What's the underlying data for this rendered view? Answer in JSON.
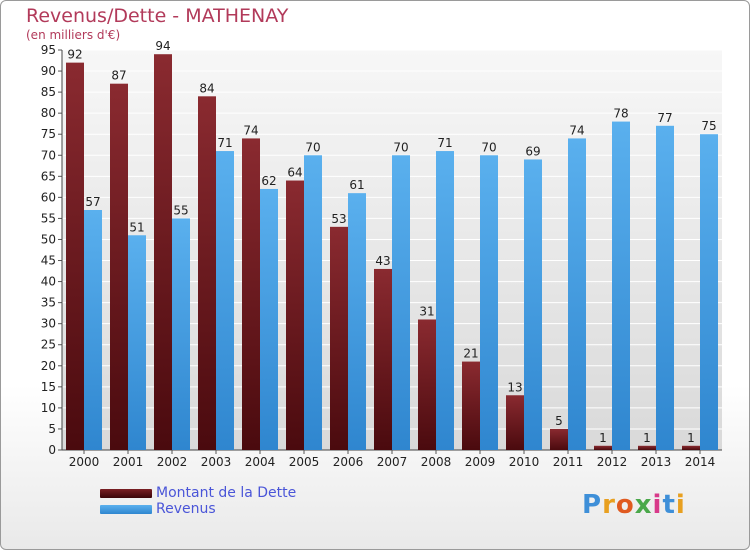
{
  "title": "Revenus/Dette - MATHENAY",
  "subtitle": "(en milliers d'€)",
  "chart_data": {
    "type": "bar",
    "title": "Revenus/Dette - MATHENAY",
    "subtitle": "(en milliers d'€)",
    "categories": [
      "2000",
      "2001",
      "2002",
      "2003",
      "2004",
      "2005",
      "2006",
      "2007",
      "2008",
      "2009",
      "2010",
      "2011",
      "2012",
      "2013",
      "2014"
    ],
    "series": [
      {
        "name": "Montant de la Dette",
        "color": "#7a1f24",
        "values": [
          92,
          87,
          94,
          84,
          74,
          64,
          53,
          43,
          31,
          21,
          13,
          5,
          1,
          1,
          1
        ]
      },
      {
        "name": "Revenus",
        "color": "#3e9be0",
        "values": [
          57,
          51,
          55,
          71,
          62,
          70,
          61,
          70,
          71,
          70,
          69,
          74,
          78,
          77,
          75
        ]
      }
    ],
    "ylim": [
      0,
      95
    ],
    "yticks": [
      0,
      5,
      10,
      15,
      20,
      25,
      30,
      35,
      40,
      45,
      50,
      55,
      60,
      65,
      70,
      75,
      80,
      85,
      90,
      95
    ],
    "grid": true,
    "legend": "bottom-left"
  },
  "legend": [
    {
      "label": "Montant de la Dette",
      "color": "#5a0f14"
    },
    {
      "label": "Revenus",
      "color": "#3e9be0"
    }
  ],
  "logo": {
    "letters": [
      "P",
      "r",
      "o",
      "x",
      "i",
      "t",
      "i"
    ],
    "colors": [
      "#3e8fd8",
      "#e8a020",
      "#e05a20",
      "#4aa84a",
      "#d83a8a",
      "#3e8fd8",
      "#e8a020"
    ]
  }
}
